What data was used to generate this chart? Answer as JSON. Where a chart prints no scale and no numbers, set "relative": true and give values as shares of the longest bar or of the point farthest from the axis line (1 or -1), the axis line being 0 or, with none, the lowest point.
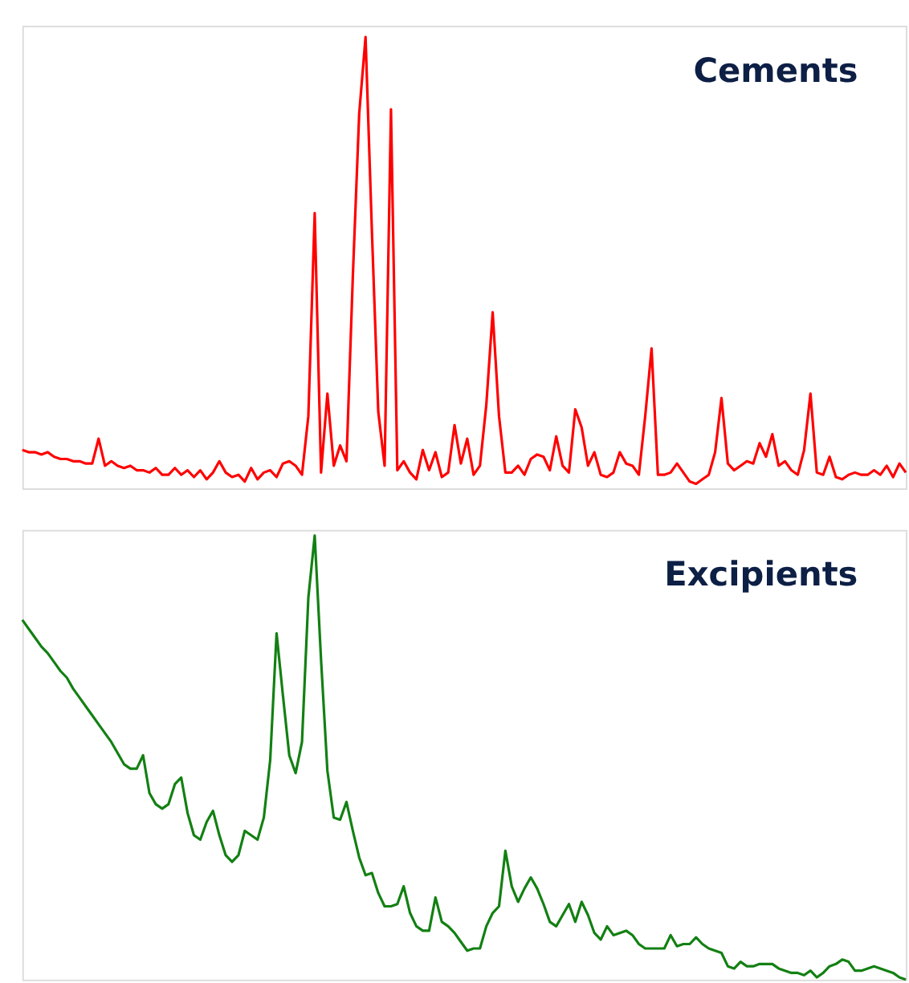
{
  "chart_data": [
    {
      "type": "line",
      "title": "Cements",
      "relative": true,
      "categories": [
        null,
        null,
        null,
        null,
        null,
        null,
        null,
        null,
        null,
        null,
        null,
        null,
        null,
        null,
        null,
        null,
        null,
        null,
        null,
        null,
        null,
        null,
        null,
        null,
        null,
        null,
        null,
        null,
        null,
        null,
        null,
        null,
        null,
        null,
        null,
        null,
        null,
        null,
        null,
        null,
        null,
        null,
        null,
        null,
        null,
        null,
        null,
        null,
        null,
        null,
        null,
        null,
        null,
        null,
        null,
        null,
        null,
        null,
        null,
        null,
        null,
        null,
        null,
        null,
        null,
        null,
        null,
        null,
        null,
        null,
        null,
        null,
        null,
        null,
        null,
        null,
        null,
        null,
        null,
        null,
        null,
        null,
        null,
        null,
        null,
        null,
        null,
        null,
        null,
        null,
        null,
        null,
        null,
        null,
        null,
        null,
        null,
        null,
        null,
        null,
        null,
        null,
        null,
        null,
        null,
        null,
        null,
        null,
        null,
        null,
        null,
        null,
        null,
        null,
        null,
        null,
        null,
        null,
        null,
        null,
        null,
        null,
        null,
        null,
        null,
        null,
        null,
        null,
        null,
        null,
        null,
        null,
        null,
        null,
        null,
        null,
        null,
        null,
        null,
        null
      ],
      "series": [
        {
          "color": "#ff0000",
          "values": [
            0.085,
            0.08,
            0.08,
            0.075,
            0.08,
            0.07,
            0.065,
            0.065,
            0.06,
            0.06,
            0.055,
            0.055,
            0.11,
            0.05,
            0.06,
            0.05,
            0.045,
            0.05,
            0.04,
            0.04,
            0.035,
            0.045,
            0.03,
            0.03,
            0.045,
            0.03,
            0.04,
            0.025,
            0.04,
            0.02,
            0.035,
            0.06,
            0.035,
            0.025,
            0.03,
            0.015,
            0.045,
            0.02,
            0.035,
            0.04,
            0.025,
            0.055,
            0.06,
            0.05,
            0.03,
            0.16,
            0.61,
            0.035,
            0.21,
            0.05,
            0.095,
            0.06,
            0.47,
            0.83,
            1.0,
            0.57,
            0.17,
            0.05,
            0.84,
            0.04,
            0.06,
            0.035,
            0.02,
            0.085,
            0.04,
            0.08,
            0.025,
            0.035,
            0.14,
            0.055,
            0.11,
            0.03,
            0.05,
            0.185,
            0.39,
            0.16,
            0.035,
            0.035,
            0.05,
            0.03,
            0.065,
            0.075,
            0.07,
            0.04,
            0.115,
            0.05,
            0.035,
            0.175,
            0.135,
            0.05,
            0.08,
            0.03,
            0.025,
            0.035,
            0.08,
            0.055,
            0.05,
            0.03,
            0.16,
            0.31,
            0.03,
            0.03,
            0.035,
            0.055,
            0.035,
            0.015,
            0.01,
            0.02,
            0.03,
            0.08,
            0.2,
            0.055,
            0.04,
            0.05,
            0.06,
            0.055,
            0.1,
            0.07,
            0.12,
            0.05,
            0.06,
            0.04,
            0.03,
            0.085,
            0.21,
            0.035,
            0.03,
            0.07,
            0.025,
            0.02,
            0.03,
            0.035,
            0.03,
            0.03,
            0.04,
            0.03,
            0.05,
            0.025,
            0.055,
            0.035
          ]
        }
      ]
    },
    {
      "type": "line",
      "title": "Excipients",
      "relative": true,
      "categories": [
        null,
        null,
        null,
        null,
        null,
        null,
        null,
        null,
        null,
        null,
        null,
        null,
        null,
        null,
        null,
        null,
        null,
        null,
        null,
        null,
        null,
        null,
        null,
        null,
        null,
        null,
        null,
        null,
        null,
        null,
        null,
        null,
        null,
        null,
        null,
        null,
        null,
        null,
        null,
        null,
        null,
        null,
        null,
        null,
        null,
        null,
        null,
        null,
        null,
        null,
        null,
        null,
        null,
        null,
        null,
        null,
        null,
        null,
        null,
        null,
        null,
        null,
        null,
        null,
        null,
        null,
        null,
        null,
        null,
        null,
        null,
        null,
        null,
        null,
        null,
        null,
        null,
        null,
        null,
        null,
        null,
        null,
        null,
        null,
        null,
        null,
        null,
        null,
        null,
        null,
        null,
        null,
        null,
        null,
        null,
        null,
        null,
        null,
        null,
        null,
        null,
        null,
        null,
        null,
        null,
        null,
        null,
        null,
        null,
        null,
        null,
        null,
        null,
        null,
        null,
        null,
        null,
        null,
        null,
        null,
        null,
        null,
        null,
        null,
        null,
        null,
        null,
        null,
        null,
        null,
        null,
        null,
        null,
        null,
        null,
        null,
        null,
        null,
        null,
        null
      ],
      "series": [
        {
          "color": "#138013",
          "values": [
            0.81,
            0.79,
            0.77,
            0.75,
            0.735,
            0.715,
            0.695,
            0.68,
            0.655,
            0.635,
            0.615,
            0.595,
            0.575,
            0.555,
            0.535,
            0.51,
            0.485,
            0.475,
            0.475,
            0.505,
            0.42,
            0.395,
            0.385,
            0.395,
            0.44,
            0.455,
            0.375,
            0.325,
            0.315,
            0.355,
            0.38,
            0.325,
            0.28,
            0.265,
            0.28,
            0.335,
            0.325,
            0.315,
            0.365,
            0.495,
            0.78,
            0.64,
            0.505,
            0.465,
            0.535,
            0.86,
            1.0,
            0.72,
            0.47,
            0.365,
            0.36,
            0.4,
            0.335,
            0.275,
            0.235,
            0.24,
            0.195,
            0.165,
            0.165,
            0.17,
            0.21,
            0.15,
            0.12,
            0.11,
            0.11,
            0.185,
            0.13,
            0.12,
            0.105,
            0.085,
            0.065,
            0.07,
            0.07,
            0.12,
            0.15,
            0.165,
            0.29,
            0.21,
            0.175,
            0.205,
            0.23,
            0.205,
            0.17,
            0.13,
            0.12,
            0.145,
            0.17,
            0.13,
            0.175,
            0.145,
            0.105,
            0.09,
            0.12,
            0.1,
            0.105,
            0.11,
            0.1,
            0.08,
            0.07,
            0.07,
            0.07,
            0.07,
            0.1,
            0.075,
            0.08,
            0.08,
            0.095,
            0.08,
            0.07,
            0.065,
            0.06,
            0.03,
            0.025,
            0.04,
            0.03,
            0.03,
            0.035,
            0.035,
            0.035,
            0.025,
            0.02,
            0.015,
            0.015,
            0.01,
            0.02,
            0.005,
            0.015,
            0.03,
            0.035,
            0.045,
            0.04,
            0.02,
            0.02,
            0.025,
            0.03,
            0.025,
            0.02,
            0.015,
            0.005,
            0
          ]
        }
      ]
    }
  ]
}
